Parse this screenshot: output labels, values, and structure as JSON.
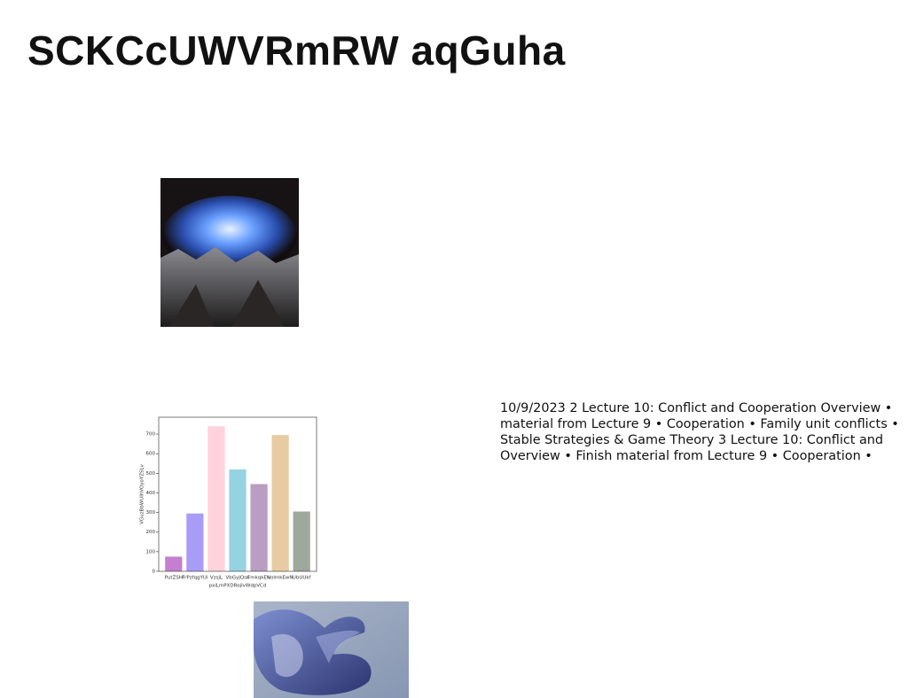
{
  "title": "SCKCcUWVRmRW aqGuha",
  "paragraph": [
    "10/9/2023 2 Lecture 10: Conflict and Cooperation Overview •",
    "material from Lecture 9 • Cooperation • Family unit conflicts •",
    "Stable Strategies & Game Theory 3 Lecture 10: Conflict and",
    "Overview • Finish material from Lecture 9 • Cooperation •"
  ],
  "chart_data": {
    "type": "bar",
    "categories": [
      "PutZSH",
      "FrPzfqgYUi",
      "VzsjL",
      "VbGyJQsn",
      "FmkqkEN",
      "volmkEwN",
      "UbUUkf"
    ],
    "series": [
      {
        "name": null,
        "values": [
          75,
          295,
          740,
          520,
          445,
          695,
          305
        ]
      }
    ],
    "colors": [
      "#c47fd0",
      "#a99cf6",
      "#ffd2dc",
      "#96d3e2",
      "#b99dc2",
      "#e9cba2",
      "#9fa89c"
    ],
    "x_label": "pxiLmPXDRojlvWdpVCd",
    "y_label": "VGuzBbWUlhVOyoYZSLv",
    "ylim": [
      0,
      786
    ],
    "yticks": [
      0,
      100,
      200,
      300,
      400,
      500,
      600,
      700
    ]
  }
}
